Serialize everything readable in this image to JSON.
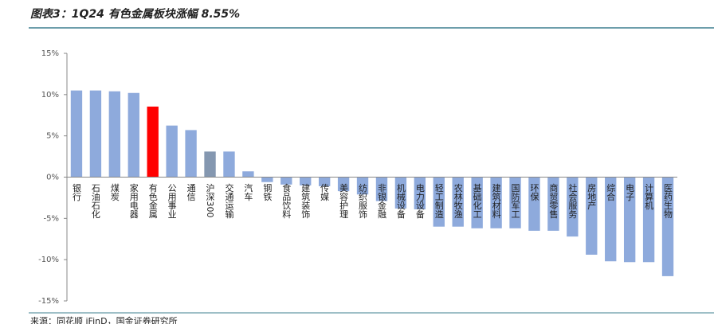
{
  "chart_data": {
    "type": "bar",
    "title": "图表3：1Q24 有色金属板块涨幅 8.55%",
    "source": "来源：同花顺 iFinD，国金证券研究所",
    "categories": [
      "银行",
      "石油石化",
      "煤炭",
      "家用电器",
      "有色金属",
      "公用事业",
      "通信",
      "沪深300",
      "交通运输",
      "汽车",
      "钢铁",
      "食品饮料",
      "建筑装饰",
      "传媒",
      "美容护理",
      "纺织服饰",
      "非银金融",
      "机械设备",
      "电力设备",
      "轻工制造",
      "农林牧渔",
      "基础化工",
      "建筑材料",
      "国防军工",
      "环保",
      "商贸零售",
      "社会服务",
      "房地产",
      "综合",
      "电子",
      "计算机",
      "医药生物"
    ],
    "values": [
      10.5,
      10.5,
      10.4,
      10.2,
      8.55,
      6.25,
      5.7,
      3.1,
      3.1,
      0.7,
      -0.6,
      -0.9,
      -1.0,
      -1.1,
      -1.7,
      -2.1,
      -2.9,
      -3.8,
      -3.9,
      -6.0,
      -6.0,
      -6.2,
      -6.2,
      -6.2,
      -6.5,
      -6.5,
      -7.2,
      -9.4,
      -10.2,
      -10.3,
      -10.3,
      -12.0
    ],
    "colors": [
      "#8eaadc",
      "#8eaadc",
      "#8eaadc",
      "#8eaadc",
      "#ff0000",
      "#8eaadc",
      "#8eaadc",
      "#8497b0",
      "#8eaadc",
      "#8eaadc",
      "#8eaadc",
      "#8eaadc",
      "#8eaadc",
      "#8eaadc",
      "#8eaadc",
      "#8eaadc",
      "#8eaadc",
      "#8eaadc",
      "#8eaadc",
      "#8eaadc",
      "#8eaadc",
      "#8eaadc",
      "#8eaadc",
      "#8eaadc",
      "#8eaadc",
      "#8eaadc",
      "#8eaadc",
      "#8eaadc",
      "#8eaadc",
      "#8eaadc",
      "#8eaadc",
      "#8eaadc"
    ],
    "ylim": [
      -15,
      15
    ],
    "yticks": [
      {
        "value": -15,
        "label": "-15%"
      },
      {
        "value": -10,
        "label": "-10%"
      },
      {
        "value": -5,
        "label": "-5%"
      },
      {
        "value": 0,
        "label": "0%"
      },
      {
        "value": 5,
        "label": "5%"
      },
      {
        "value": 10,
        "label": "10%"
      },
      {
        "value": 15,
        "label": "15%"
      }
    ]
  }
}
